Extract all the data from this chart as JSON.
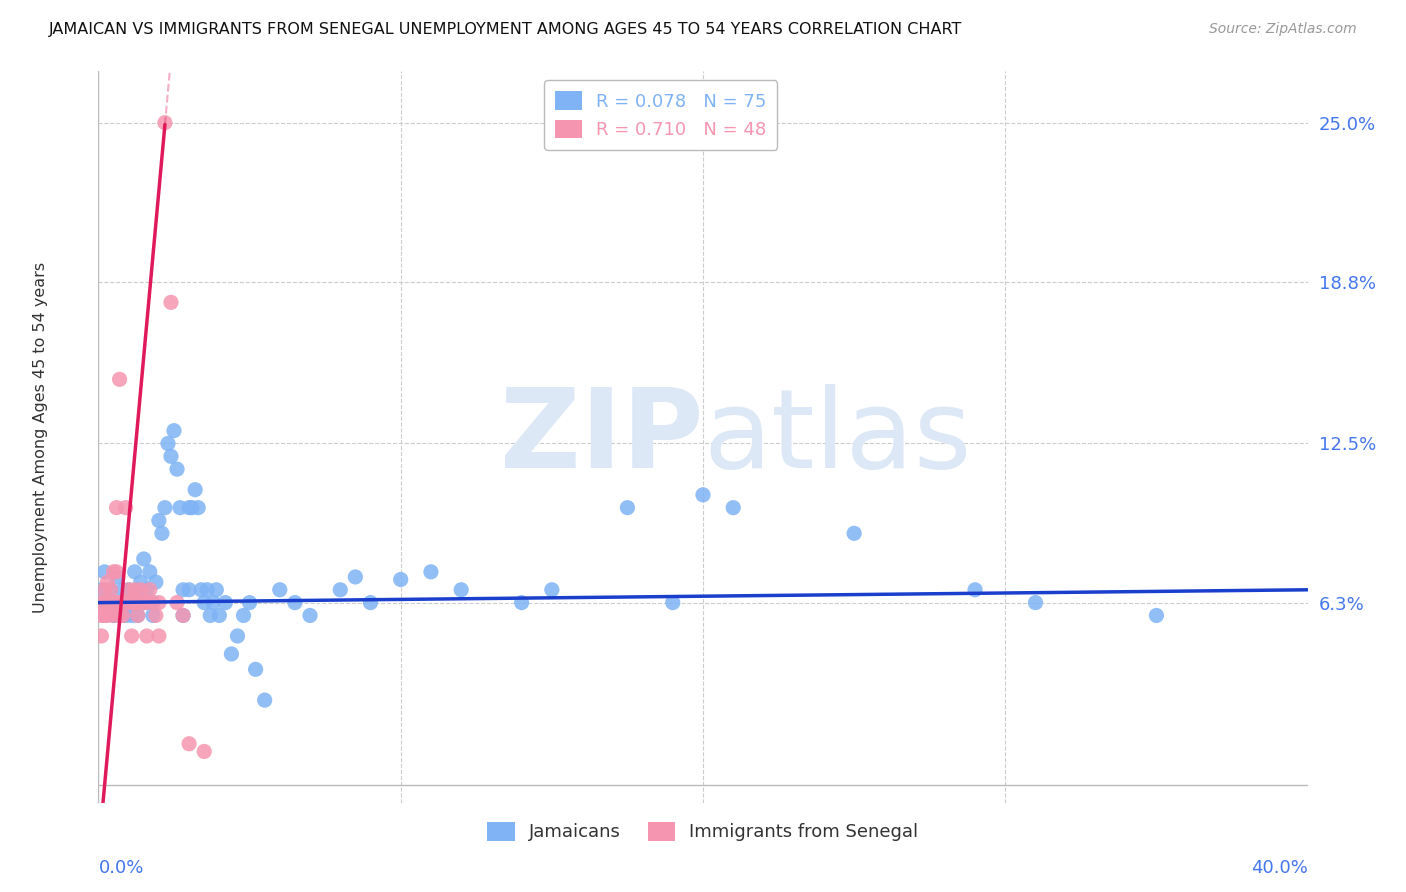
{
  "title": "JAMAICAN VS IMMIGRANTS FROM SENEGAL UNEMPLOYMENT AMONG AGES 45 TO 54 YEARS CORRELATION CHART",
  "source": "Source: ZipAtlas.com",
  "ylabel": "Unemployment Among Ages 45 to 54 years",
  "xlim": [
    0.0,
    0.4
  ],
  "ylim": [
    -0.015,
    0.27
  ],
  "ytick_positions": [
    0.063,
    0.125,
    0.188,
    0.25
  ],
  "ytick_labels": [
    "6.3%",
    "12.5%",
    "18.8%",
    "25.0%"
  ],
  "watermark_zip": "ZIP",
  "watermark_atlas": "atlas",
  "jamaicans": {
    "color": "#7fb3f5",
    "line_color": "#1a3fcc",
    "points": [
      [
        0.001,
        0.068
      ],
      [
        0.002,
        0.075
      ],
      [
        0.003,
        0.063
      ],
      [
        0.004,
        0.068
      ],
      [
        0.005,
        0.058
      ],
      [
        0.005,
        0.063
      ],
      [
        0.006,
        0.073
      ],
      [
        0.007,
        0.063
      ],
      [
        0.007,
        0.058
      ],
      [
        0.008,
        0.068
      ],
      [
        0.009,
        0.058
      ],
      [
        0.01,
        0.063
      ],
      [
        0.01,
        0.068
      ],
      [
        0.011,
        0.058
      ],
      [
        0.011,
        0.063
      ],
      [
        0.012,
        0.075
      ],
      [
        0.012,
        0.063
      ],
      [
        0.013,
        0.068
      ],
      [
        0.013,
        0.058
      ],
      [
        0.014,
        0.071
      ],
      [
        0.015,
        0.08
      ],
      [
        0.015,
        0.063
      ],
      [
        0.016,
        0.068
      ],
      [
        0.017,
        0.075
      ],
      [
        0.018,
        0.063
      ],
      [
        0.018,
        0.058
      ],
      [
        0.019,
        0.071
      ],
      [
        0.02,
        0.095
      ],
      [
        0.021,
        0.09
      ],
      [
        0.022,
        0.1
      ],
      [
        0.023,
        0.125
      ],
      [
        0.024,
        0.12
      ],
      [
        0.025,
        0.13
      ],
      [
        0.026,
        0.115
      ],
      [
        0.027,
        0.1
      ],
      [
        0.028,
        0.068
      ],
      [
        0.028,
        0.058
      ],
      [
        0.03,
        0.1
      ],
      [
        0.03,
        0.068
      ],
      [
        0.031,
        0.1
      ],
      [
        0.032,
        0.107
      ],
      [
        0.033,
        0.1
      ],
      [
        0.034,
        0.068
      ],
      [
        0.035,
        0.063
      ],
      [
        0.036,
        0.068
      ],
      [
        0.037,
        0.058
      ],
      [
        0.038,
        0.063
      ],
      [
        0.039,
        0.068
      ],
      [
        0.04,
        0.058
      ],
      [
        0.042,
        0.063
      ],
      [
        0.044,
        0.043
      ],
      [
        0.046,
        0.05
      ],
      [
        0.048,
        0.058
      ],
      [
        0.05,
        0.063
      ],
      [
        0.052,
        0.037
      ],
      [
        0.055,
        0.025
      ],
      [
        0.06,
        0.068
      ],
      [
        0.065,
        0.063
      ],
      [
        0.07,
        0.058
      ],
      [
        0.08,
        0.068
      ],
      [
        0.085,
        0.073
      ],
      [
        0.09,
        0.063
      ],
      [
        0.1,
        0.072
      ],
      [
        0.11,
        0.075
      ],
      [
        0.12,
        0.068
      ],
      [
        0.14,
        0.063
      ],
      [
        0.15,
        0.068
      ],
      [
        0.175,
        0.1
      ],
      [
        0.19,
        0.063
      ],
      [
        0.2,
        0.105
      ],
      [
        0.21,
        0.1
      ],
      [
        0.25,
        0.09
      ],
      [
        0.29,
        0.068
      ],
      [
        0.31,
        0.063
      ],
      [
        0.35,
        0.058
      ]
    ]
  },
  "senegal": {
    "color": "#f595b0",
    "line_color": "#e0195a",
    "points": [
      [
        0.001,
        0.063
      ],
      [
        0.001,
        0.058
      ],
      [
        0.001,
        0.05
      ],
      [
        0.002,
        0.068
      ],
      [
        0.002,
        0.063
      ],
      [
        0.002,
        0.058
      ],
      [
        0.003,
        0.071
      ],
      [
        0.003,
        0.063
      ],
      [
        0.003,
        0.058
      ],
      [
        0.004,
        0.068
      ],
      [
        0.004,
        0.063
      ],
      [
        0.005,
        0.075
      ],
      [
        0.005,
        0.063
      ],
      [
        0.005,
        0.058
      ],
      [
        0.006,
        0.1
      ],
      [
        0.006,
        0.075
      ],
      [
        0.006,
        0.063
      ],
      [
        0.007,
        0.15
      ],
      [
        0.007,
        0.063
      ],
      [
        0.007,
        0.058
      ],
      [
        0.008,
        0.063
      ],
      [
        0.008,
        0.058
      ],
      [
        0.009,
        0.1
      ],
      [
        0.009,
        0.063
      ],
      [
        0.01,
        0.068
      ],
      [
        0.01,
        0.063
      ],
      [
        0.011,
        0.063
      ],
      [
        0.011,
        0.05
      ],
      [
        0.012,
        0.068
      ],
      [
        0.012,
        0.063
      ],
      [
        0.013,
        0.063
      ],
      [
        0.013,
        0.058
      ],
      [
        0.014,
        0.068
      ],
      [
        0.015,
        0.063
      ],
      [
        0.016,
        0.063
      ],
      [
        0.016,
        0.05
      ],
      [
        0.017,
        0.068
      ],
      [
        0.018,
        0.063
      ],
      [
        0.019,
        0.058
      ],
      [
        0.02,
        0.063
      ],
      [
        0.02,
        0.05
      ],
      [
        0.022,
        0.25
      ],
      [
        0.024,
        0.18
      ],
      [
        0.026,
        0.063
      ],
      [
        0.028,
        0.058
      ],
      [
        0.03,
        0.008
      ],
      [
        0.035,
        0.005
      ]
    ]
  },
  "grid_color": "#cccccc",
  "background_color": "#ffffff",
  "title_color": "#111111",
  "axis_color": "#4477ee",
  "watermark_color": "#dce8f5"
}
